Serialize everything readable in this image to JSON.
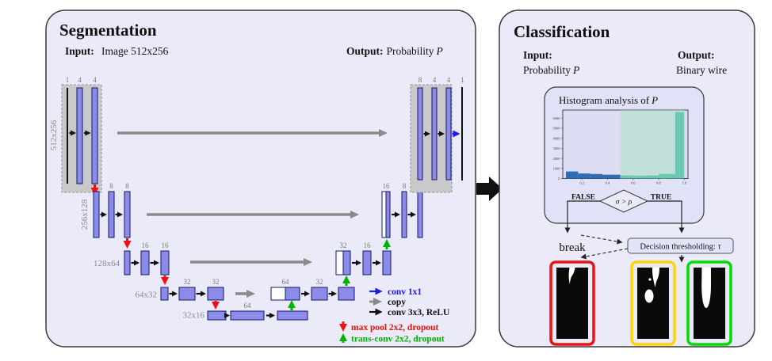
{
  "segmentation": {
    "title": "Segmentation",
    "input": {
      "label": "Input:",
      "value": "Image 512x256"
    },
    "output": {
      "label": "Output:",
      "value": "Probability",
      "math": "P"
    },
    "unet": {
      "sizes": [
        "512x256",
        "256x128",
        "128x64",
        "64x32",
        "32x16"
      ],
      "enc1_channels": [
        "1",
        "4",
        "4"
      ],
      "enc2_channels": [
        "8",
        "8"
      ],
      "enc3_channels": [
        "16",
        "16"
      ],
      "enc4_channels": [
        "32",
        "32"
      ],
      "bottom_channel": "64",
      "dec4_channels": [
        "64",
        "32"
      ],
      "dec3_channels": [
        "32",
        "16"
      ],
      "dec2_channels": [
        "16",
        "8"
      ],
      "dec1_channels": [
        "8",
        "4",
        "4",
        "1"
      ]
    },
    "legend": {
      "conv1x1": "conv 1x1",
      "copy": "copy",
      "conv3x3": "conv 3x3, ReLU",
      "maxpool": "max pool 2x2, dropout",
      "transconv": "trans-conv 2x2, dropout"
    }
  },
  "classification": {
    "title": "Classification",
    "input": {
      "label": "Input:",
      "value": "Probability",
      "math": "P"
    },
    "output": {
      "label": "Output:",
      "value": "Binary wire"
    },
    "histogram_box": {
      "title": "Histogram analysis of",
      "math": "P"
    },
    "condition": "σ > ρ",
    "false_label": "FALSE",
    "true_label": "TRUE",
    "break_label": "break",
    "threshold_box": {
      "label": "Decision thresholding:",
      "math": "τ"
    }
  },
  "chart_data": {
    "type": "bar",
    "subtype": "histogram",
    "title": "Histogram analysis of P",
    "bin_edges": [
      0.075,
      0.17,
      0.265,
      0.36,
      0.5,
      0.6,
      0.7,
      0.8,
      0.93,
      1.0
    ],
    "values": [
      700,
      500,
      450,
      380,
      300,
      280,
      300,
      450,
      6600
    ],
    "threshold": 0.5,
    "shaded_region": [
      0.5,
      1.0
    ],
    "shaded_color": "#a9e3c3",
    "color_below": "#2e6db4",
    "color_above": "#1fa8a0",
    "xticks": [
      "0.2",
      "0.4",
      "0.6",
      "0.8",
      "1.0"
    ],
    "yticks": [
      0,
      1000,
      2000,
      3000,
      4000,
      5000,
      6000
    ],
    "xlim": [
      0.05,
      1.03
    ],
    "ylim": [
      0,
      6800
    ],
    "xlabel": "",
    "ylabel": "",
    "legend_position": "none",
    "grid": false
  },
  "colors": {
    "panel_fill": "#eaeaf9",
    "panel_border": "#3a3a3a",
    "layer_bar_fill": "#8b8be8",
    "layer_bar_border": "#15156e",
    "encoder_box_fill": "#c9c9c9",
    "copy_arrow": "#8a8a8a",
    "maxpool_arrow": "#ee1111",
    "transconv_arrow": "#00b400",
    "conv1x1_arrow": "#1a1aee",
    "frame_break": "#ee1111",
    "frame_partial": "#ffd400",
    "frame_good": "#00dd00"
  }
}
